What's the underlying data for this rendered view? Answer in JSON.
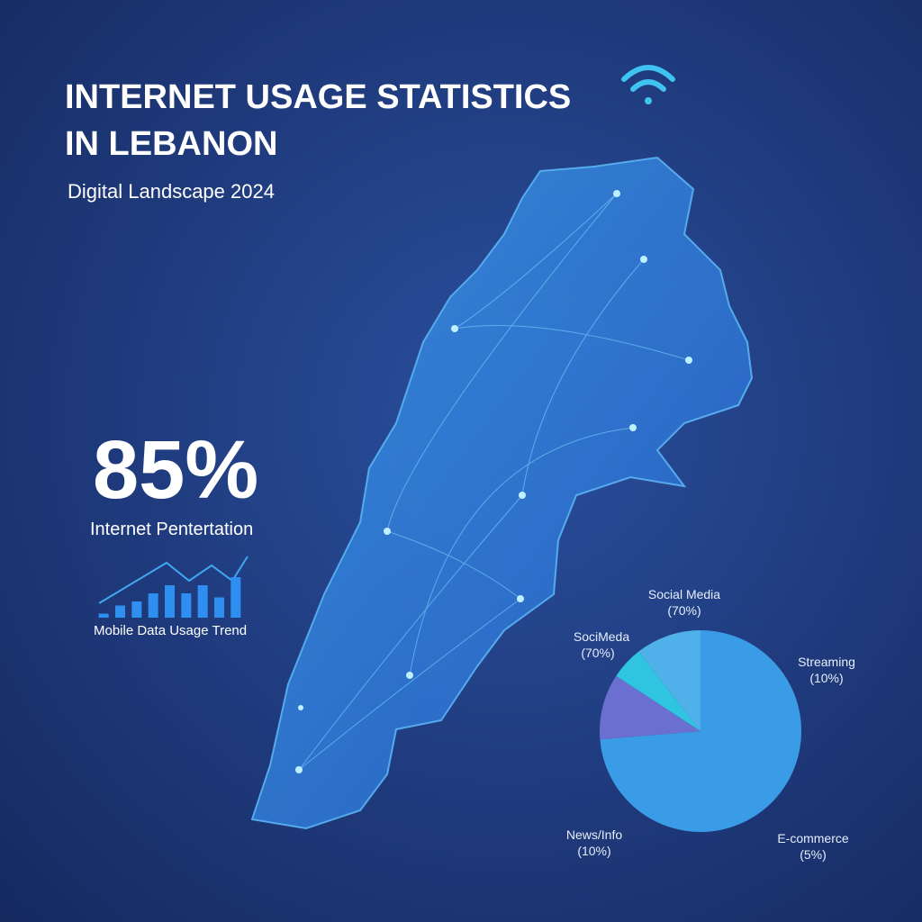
{
  "header": {
    "title_line1": "INTERNET USAGE STATISTICS",
    "title_line2": "IN LEBANON",
    "subtitle": "Digital Landscape 2024"
  },
  "stat": {
    "value": "85%",
    "label": "Internet Pentertation"
  },
  "chart_data": [
    {
      "type": "bar",
      "title": "Mobile Data Usage Trend",
      "categories": [
        null,
        null,
        null,
        null,
        null,
        null,
        null,
        null,
        null
      ],
      "values": [
        1,
        3,
        4,
        6,
        8,
        6,
        8,
        5,
        10
      ],
      "ylim": [
        0,
        10
      ],
      "color": "#2f8ff0"
    },
    {
      "type": "pie",
      "categories": [
        "Social Media",
        "Streaming",
        "E-commerce",
        "News/Info"
      ],
      "values": [
        70,
        10,
        5,
        10
      ],
      "value_labels": [
        "(70%)",
        "(10%)",
        "(5%)",
        "(10%)"
      ],
      "colors": [
        "#3a9be6",
        "#6a6fd0",
        "#2fc4e0",
        "#4fb0ea"
      ],
      "annotation": {
        "name": "SociMeda",
        "label": "(70%)"
      }
    }
  ]
}
